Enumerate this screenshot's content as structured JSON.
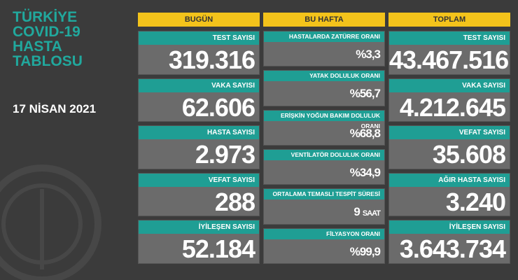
{
  "title_lines": [
    "TÜRKİYE",
    "COVID-19",
    "HASTA",
    "TABLOSU"
  ],
  "date": "17 NİSAN 2021",
  "columns": [
    {
      "header": "BUGÜN",
      "cards": [
        {
          "label": "TEST SAYISI",
          "value": "319.316"
        },
        {
          "label": "VAKA SAYISI",
          "value": "62.606"
        },
        {
          "label": "HASTA SAYISI",
          "value": "2.973"
        },
        {
          "label": "VEFAT SAYISI",
          "value": "288"
        },
        {
          "label": "İYİLEŞEN SAYISI",
          "value": "52.184"
        }
      ]
    },
    {
      "header": "BU HAFTA",
      "cards": [
        {
          "label": "HASTALARDA ZATÜRRE ORANI",
          "value": "%3,3"
        },
        {
          "label": "YATAK DOLULUK ORANI",
          "value": "%56,7"
        },
        {
          "label": "ERİŞKİN YOĞUN BAKIM DOLULUK ORANI",
          "value": "%68,8"
        },
        {
          "label": "VENTİLATÖR DOLULUK ORANI",
          "value": "%34,9"
        },
        {
          "label": "ORTALAMA TEMASLI TESPİT SÜRESİ",
          "value": "9",
          "unit": "SAAT"
        },
        {
          "label": "FİLYASYON ORANI",
          "value": "%99,9"
        }
      ]
    },
    {
      "header": "TOPLAM",
      "cards": [
        {
          "label": "TEST SAYISI",
          "value": "43.467.516"
        },
        {
          "label": "VAKA SAYISI",
          "value": "4.212.645"
        },
        {
          "label": "VEFAT SAYISI",
          "value": "35.608"
        },
        {
          "label": "AĞIR HASTA SAYISI",
          "value": "3.240"
        },
        {
          "label": "İYİLEŞEN SAYISI",
          "value": "3.643.734"
        }
      ]
    }
  ]
}
